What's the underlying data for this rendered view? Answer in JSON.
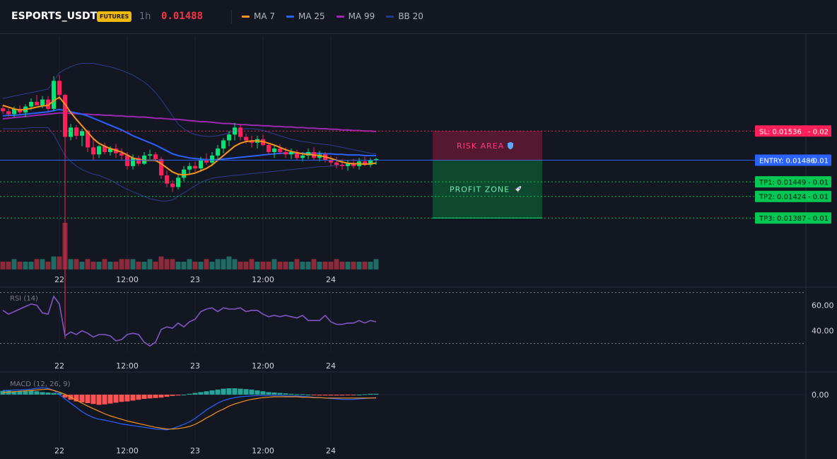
{
  "header": {
    "symbol": "ESPORTS_USDT",
    "badge": "FUTURES",
    "interval": "1h",
    "price": "0.01488",
    "legend": [
      {
        "label": "MA 7",
        "color": "#f7931a"
      },
      {
        "label": "MA 25",
        "color": "#2962ff"
      },
      {
        "label": "MA 99",
        "color": "#9c27b0"
      },
      {
        "label": "BB 20",
        "color": "#1e3a8a"
      }
    ]
  },
  "time_axis": [
    {
      "label": "22",
      "t": 10
    },
    {
      "label": "12:00",
      "t": 22
    },
    {
      "label": "23",
      "t": 34
    },
    {
      "label": "12:00",
      "t": 46
    },
    {
      "label": "24",
      "t": 58
    }
  ],
  "colors": {
    "up": "#26a69a",
    "down": "#ef5350",
    "upBright": "#00e676",
    "downBright": "#ff1f5a",
    "entry": "#2962ff",
    "sl": "#ff1f5a",
    "tp": "#00c853"
  },
  "levels": {
    "sl": {
      "label": "SL: 0.01536",
      "extra": "- 0.02",
      "value": 0.01536
    },
    "entry": {
      "label": "ENTRY: 0.01486",
      "extra": "- 0.01",
      "value": 0.01486
    },
    "tps": [
      {
        "label": "TP1: 0.01449",
        "extra": "- 0.01",
        "value": 0.01449
      },
      {
        "label": "TP2: 0.01424",
        "extra": "- 0.01",
        "value": 0.01424
      },
      {
        "label": "TP3: 0.01387",
        "extra": "- 0.01",
        "value": 0.01387
      }
    ]
  },
  "zones": {
    "risk": {
      "label": "RISK AREA",
      "icon": "shield-icon"
    },
    "profit": {
      "label": "PROFIT ZONE",
      "icon": "rocket-icon"
    }
  },
  "rsi": {
    "label": "RSI (14)",
    "ticks": [
      "60.00",
      "40.00"
    ],
    "values": [
      56,
      53,
      55,
      57,
      59,
      61,
      60,
      54,
      53,
      67,
      61,
      36,
      39,
      37,
      40,
      38,
      35,
      37,
      37,
      36,
      32,
      33,
      37,
      38,
      37,
      31,
      28,
      31,
      41,
      43,
      42,
      46,
      43,
      47,
      49,
      55,
      57,
      58,
      55,
      58,
      57,
      57,
      58,
      55,
      56,
      56,
      53,
      51,
      52,
      51,
      52,
      51,
      50,
      52,
      48,
      48,
      48,
      52,
      47,
      45,
      45,
      46,
      46,
      48,
      46,
      48,
      47
    ]
  },
  "macd": {
    "label": "MACD (12, 26, 9)",
    "ticks": [
      "0.00"
    ],
    "hist": [
      0.9,
      0.9,
      0.8,
      0.8,
      0.8,
      0.9,
      0.8,
      0.6,
      0.5,
      0.4,
      0.4,
      -0.7,
      -1.2,
      -1.6,
      -1.8,
      -2.0,
      -2.2,
      -2.4,
      -2.3,
      -2.1,
      -1.9,
      -1.7,
      -1.6,
      -1.4,
      -1.2,
      -1.0,
      -0.9,
      -0.8,
      -0.7,
      -0.5,
      -0.3,
      -0.2,
      0.0,
      0.2,
      0.4,
      0.6,
      0.8,
      1.0,
      1.2,
      1.4,
      1.5,
      1.5,
      1.4,
      1.3,
      1.2,
      1.0,
      0.8,
      0.6,
      0.5,
      0.4,
      0.3,
      0.2,
      0.1,
      0.1,
      0.0,
      -0.1,
      -0.2,
      -0.2,
      -0.2,
      -0.2,
      -0.2,
      -0.1,
      -0.1,
      0.0,
      0.1,
      0.2,
      0.2
    ],
    "macd_line": [
      1.0,
      1.0,
      1.1,
      1.1,
      1.2,
      1.3,
      1.5,
      1.6,
      1.5,
      1.0,
      0.0,
      -1.0,
      -2.0,
      -3.0,
      -4.0,
      -4.8,
      -5.4,
      -5.8,
      -6.0,
      -6.3,
      -6.6,
      -6.9,
      -7.1,
      -7.3,
      -7.5,
      -7.7,
      -7.9,
      -8.1,
      -8.2,
      -8.3,
      -8.0,
      -7.5,
      -7.0,
      -6.4,
      -5.6,
      -4.6,
      -3.6,
      -2.8,
      -2.0,
      -1.4,
      -1.0,
      -0.7,
      -0.5,
      -0.4,
      -0.3,
      -0.2,
      -0.2,
      -0.2,
      -0.2,
      -0.2,
      -0.3,
      -0.3,
      -0.3,
      -0.4,
      -0.5,
      -0.6,
      -0.7,
      -0.8,
      -0.9,
      -1.0,
      -1.1,
      -1.1,
      -1.1,
      -1.0,
      -0.9,
      -0.8,
      -0.7
    ],
    "signal_line": [
      0.5,
      0.6,
      0.7,
      0.8,
      0.9,
      1.0,
      1.1,
      1.2,
      1.3,
      1.0,
      0.6,
      0.1,
      -0.6,
      -1.3,
      -2.0,
      -2.7,
      -3.3,
      -3.9,
      -4.5,
      -5.0,
      -5.4,
      -5.8,
      -6.2,
      -6.5,
      -6.8,
      -7.1,
      -7.4,
      -7.7,
      -7.9,
      -8.1,
      -8.1,
      -8.0,
      -7.8,
      -7.5,
      -7.0,
      -6.3,
      -5.5,
      -4.8,
      -4.0,
      -3.4,
      -2.7,
      -2.2,
      -1.8,
      -1.4,
      -1.1,
      -0.9,
      -0.7,
      -0.6,
      -0.5,
      -0.5,
      -0.5,
      -0.5,
      -0.5,
      -0.6,
      -0.6,
      -0.7,
      -0.7,
      -0.8,
      -0.8,
      -0.8,
      -0.8,
      -0.8,
      -0.8,
      -0.8,
      -0.8,
      -0.8,
      -0.8
    ]
  },
  "candles": [
    [
      0.01575,
      0.0158,
      0.01565,
      0.0157
    ],
    [
      0.0157,
      0.01575,
      0.0156,
      0.01565
    ],
    [
      0.01565,
      0.01578,
      0.0156,
      0.01574
    ],
    [
      0.01574,
      0.0158,
      0.01565,
      0.01568
    ],
    [
      0.01568,
      0.01582,
      0.0156,
      0.01578
    ],
    [
      0.01578,
      0.01592,
      0.01572,
      0.01586
    ],
    [
      0.01586,
      0.01598,
      0.0158,
      0.0158
    ],
    [
      0.0158,
      0.01596,
      0.01575,
      0.0159
    ],
    [
      0.0159,
      0.01596,
      0.0157,
      0.01574
    ],
    [
      0.01574,
      0.0163,
      0.0157,
      0.01622
    ],
    [
      0.01622,
      0.01632,
      0.0159,
      0.01598
    ],
    [
      0.01598,
      0.016,
      0.0118,
      0.01526
    ],
    [
      0.01526,
      0.01548,
      0.0152,
      0.01542
    ],
    [
      0.01542,
      0.01546,
      0.01522,
      0.01528
    ],
    [
      0.01528,
      0.0154,
      0.0151,
      0.01536
    ],
    [
      0.01536,
      0.01538,
      0.015,
      0.01508
    ],
    [
      0.01508,
      0.01522,
      0.01486,
      0.01496
    ],
    [
      0.01496,
      0.01512,
      0.0149,
      0.0151
    ],
    [
      0.0151,
      0.01516,
      0.01496,
      0.015
    ],
    [
      0.015,
      0.0151,
      0.01494,
      0.01506
    ],
    [
      0.01506,
      0.01514,
      0.0149,
      0.01498
    ],
    [
      0.01498,
      0.01506,
      0.01486,
      0.01494
    ],
    [
      0.01494,
      0.015,
      0.0147,
      0.01476
    ],
    [
      0.01476,
      0.01496,
      0.0147,
      0.0149
    ],
    [
      0.0149,
      0.01494,
      0.01476,
      0.0148
    ],
    [
      0.0148,
      0.015,
      0.01478,
      0.01494
    ],
    [
      0.01494,
      0.01504,
      0.01488,
      0.01496
    ],
    [
      0.01496,
      0.015,
      0.01484,
      0.01488
    ],
    [
      0.01488,
      0.01492,
      0.01454,
      0.0146
    ],
    [
      0.0146,
      0.01468,
      0.0144,
      0.01446
    ],
    [
      0.01446,
      0.01452,
      0.01432,
      0.0144
    ],
    [
      0.0144,
      0.01462,
      0.01436,
      0.01456
    ],
    [
      0.01456,
      0.01476,
      0.0145,
      0.0147
    ],
    [
      0.0147,
      0.01482,
      0.01462,
      0.01476
    ],
    [
      0.01476,
      0.01484,
      0.01466,
      0.01472
    ],
    [
      0.01472,
      0.01492,
      0.01466,
      0.01486
    ],
    [
      0.01486,
      0.01498,
      0.01478,
      0.01482
    ],
    [
      0.01482,
      0.015,
      0.01476,
      0.01494
    ],
    [
      0.01494,
      0.01512,
      0.01486,
      0.01506
    ],
    [
      0.01506,
      0.01524,
      0.01498,
      0.0152
    ],
    [
      0.0152,
      0.01536,
      0.0151,
      0.0153
    ],
    [
      0.0153,
      0.0155,
      0.0152,
      0.01542
    ],
    [
      0.01542,
      0.01548,
      0.0152,
      0.01526
    ],
    [
      0.01526,
      0.01532,
      0.01514,
      0.0152
    ],
    [
      0.0152,
      0.01528,
      0.01508,
      0.01516
    ],
    [
      0.01516,
      0.01528,
      0.01506,
      0.01522
    ],
    [
      0.01522,
      0.0153,
      0.0151,
      0.01512
    ],
    [
      0.01512,
      0.01516,
      0.01496,
      0.015
    ],
    [
      0.015,
      0.01512,
      0.0149,
      0.01506
    ],
    [
      0.01506,
      0.01514,
      0.01496,
      0.015
    ],
    [
      0.015,
      0.01508,
      0.0149,
      0.01496
    ],
    [
      0.01496,
      0.01506,
      0.01488,
      0.015
    ],
    [
      0.015,
      0.01504,
      0.01486,
      0.0149
    ],
    [
      0.0149,
      0.015,
      0.01484,
      0.01494
    ],
    [
      0.01494,
      0.01506,
      0.01488,
      0.015
    ],
    [
      0.015,
      0.01508,
      0.01486,
      0.0149
    ],
    [
      0.0149,
      0.01502,
      0.01484,
      0.01496
    ],
    [
      0.01496,
      0.015,
      0.01482,
      0.01486
    ],
    [
      0.01486,
      0.01494,
      0.01476,
      0.01482
    ],
    [
      0.01482,
      0.01492,
      0.01472,
      0.01478
    ],
    [
      0.01478,
      0.01488,
      0.0147,
      0.01476
    ],
    [
      0.01476,
      0.01486,
      0.01468,
      0.0148
    ],
    [
      0.0148,
      0.01488,
      0.01472,
      0.01476
    ],
    [
      0.01476,
      0.0149,
      0.0147,
      0.01484
    ],
    [
      0.01484,
      0.01492,
      0.01476,
      0.01478
    ],
    [
      0.01478,
      0.0149,
      0.01474,
      0.01486
    ],
    [
      0.01486,
      0.0149,
      0.01478,
      0.01488
    ]
  ],
  "volume": [
    3,
    3,
    4,
    3,
    3,
    3,
    4,
    4,
    3,
    5,
    5,
    18,
    4,
    4,
    3,
    4,
    3,
    3,
    4,
    3,
    3,
    4,
    4,
    4,
    3,
    3,
    4,
    3,
    5,
    4,
    4,
    3,
    3,
    4,
    3,
    3,
    4,
    3,
    4,
    4,
    5,
    4,
    3,
    3,
    4,
    3,
    3,
    3,
    4,
    3,
    3,
    3,
    4,
    3,
    3,
    4,
    3,
    3,
    3,
    4,
    3,
    3,
    3,
    3,
    3,
    3,
    4
  ],
  "mas": {
    "ma7": [
      0.0158,
      0.01577,
      0.01574,
      0.01572,
      0.01573,
      0.01575,
      0.01577,
      0.01579,
      0.0158,
      0.01588,
      0.01594,
      0.01582,
      0.01568,
      0.01556,
      0.01545,
      0.01534,
      0.01523,
      0.01515,
      0.0151,
      0.01506,
      0.01503,
      0.015,
      0.01495,
      0.0149,
      0.01487,
      0.01486,
      0.01486,
      0.01486,
      0.0148,
      0.01473,
      0.01466,
      0.01462,
      0.01461,
      0.01462,
      0.01464,
      0.01468,
      0.01472,
      0.01478,
      0.01486,
      0.01494,
      0.01502,
      0.0151,
      0.01515,
      0.01518,
      0.01519,
      0.01519,
      0.01518,
      0.01515,
      0.01512,
      0.01508,
      0.01504,
      0.01501,
      0.01499,
      0.01497,
      0.01496,
      0.01495,
      0.01494,
      0.01492,
      0.01489,
      0.01486,
      0.01483,
      0.01481,
      0.0148,
      0.0148,
      0.01479,
      0.0148,
      0.01481
    ],
    "ma25": [
      0.01562,
      0.01563,
      0.01563,
      0.01564,
      0.01565,
      0.01566,
      0.01567,
      0.01568,
      0.01569,
      0.01571,
      0.01573,
      0.01571,
      0.01569,
      0.01567,
      0.01565,
      0.01562,
      0.01558,
      0.01554,
      0.0155,
      0.01546,
      0.01542,
      0.01538,
      0.01533,
      0.01528,
      0.01524,
      0.0152,
      0.01516,
      0.01512,
      0.01507,
      0.01502,
      0.01497,
      0.01494,
      0.01492,
      0.0149,
      0.01489,
      0.01488,
      0.01487,
      0.01487,
      0.01487,
      0.01488,
      0.01489,
      0.0149,
      0.01491,
      0.01492,
      0.01493,
      0.01494,
      0.01495,
      0.01496,
      0.01497,
      0.01498,
      0.01498,
      0.01498,
      0.01498,
      0.01498,
      0.01498,
      0.01498,
      0.01498,
      0.01497,
      0.01497,
      0.01496,
      0.01496,
      0.01495,
      0.01495,
      0.01495,
      0.01494,
      0.01494,
      0.01494
    ],
    "ma99": [
      0.01557,
      0.01558,
      0.01559,
      0.0156,
      0.01561,
      0.01562,
      0.01563,
      0.01564,
      0.01565,
      0.01566,
      0.01567,
      0.01567,
      0.01566,
      0.01566,
      0.01565,
      0.01565,
      0.01564,
      0.01564,
      0.01563,
      0.01563,
      0.01562,
      0.01562,
      0.01561,
      0.01561,
      0.0156,
      0.0156,
      0.01559,
      0.01558,
      0.01558,
      0.01557,
      0.01556,
      0.01556,
      0.01555,
      0.01554,
      0.01553,
      0.01552,
      0.01552,
      0.01551,
      0.0155,
      0.01549,
      0.01549,
      0.01548,
      0.01547,
      0.01547,
      0.01546,
      0.01546,
      0.01545,
      0.01545,
      0.01544,
      0.01544,
      0.01543,
      0.01543,
      0.01542,
      0.01542,
      0.01541,
      0.01541,
      0.0154,
      0.0154,
      0.01539,
      0.01539,
      0.01538,
      0.01538,
      0.01537,
      0.01537,
      0.01536,
      0.01536,
      0.01535
    ],
    "bb_upper": [
      0.01592,
      0.01594,
      0.01596,
      0.01598,
      0.016,
      0.01602,
      0.01604,
      0.01606,
      0.01608,
      0.01622,
      0.01636,
      0.01642,
      0.01646,
      0.0165,
      0.01652,
      0.01652,
      0.01652,
      0.0165,
      0.01648,
      0.01646,
      0.01643,
      0.0164,
      0.01636,
      0.01632,
      0.01626,
      0.0162,
      0.01612,
      0.01602,
      0.0159,
      0.01576,
      0.01562,
      0.01548,
      0.0154,
      0.01534,
      0.0153,
      0.01528,
      0.01527,
      0.01527,
      0.01528,
      0.0153,
      0.01533,
      0.01537,
      0.01539,
      0.0154,
      0.0154,
      0.01539,
      0.01537,
      0.01534,
      0.01531,
      0.01528,
      0.01525,
      0.01522,
      0.0152,
      0.01518,
      0.01517,
      0.01515,
      0.01514,
      0.01513,
      0.01512,
      0.0151,
      0.01508,
      0.01506,
      0.01504,
      0.01502,
      0.015,
      0.01498,
      0.01497
    ],
    "bb_lower": [
      0.0154,
      0.0154,
      0.0154,
      0.0154,
      0.01541,
      0.01542,
      0.01542,
      0.01542,
      0.01542,
      0.0153,
      0.01512,
      0.01494,
      0.01484,
      0.01476,
      0.0147,
      0.01466,
      0.01462,
      0.0146,
      0.01456,
      0.01452,
      0.01447,
      0.01441,
      0.01436,
      0.01432,
      0.01428,
      0.01424,
      0.0142,
      0.01418,
      0.01416,
      0.01416,
      0.01418,
      0.01424,
      0.0143,
      0.01436,
      0.01442,
      0.01448,
      0.01452,
      0.01455,
      0.01457,
      0.01458,
      0.01459,
      0.0146,
      0.01461,
      0.01462,
      0.01463,
      0.01464,
      0.01465,
      0.01466,
      0.01467,
      0.01468,
      0.01469,
      0.0147,
      0.01471,
      0.01472,
      0.01473,
      0.01474,
      0.01475,
      0.01475,
      0.01476,
      0.01477,
      0.01478,
      0.01478,
      0.01479,
      0.0148,
      0.0148,
      0.01481,
      0.01482
    ]
  }
}
